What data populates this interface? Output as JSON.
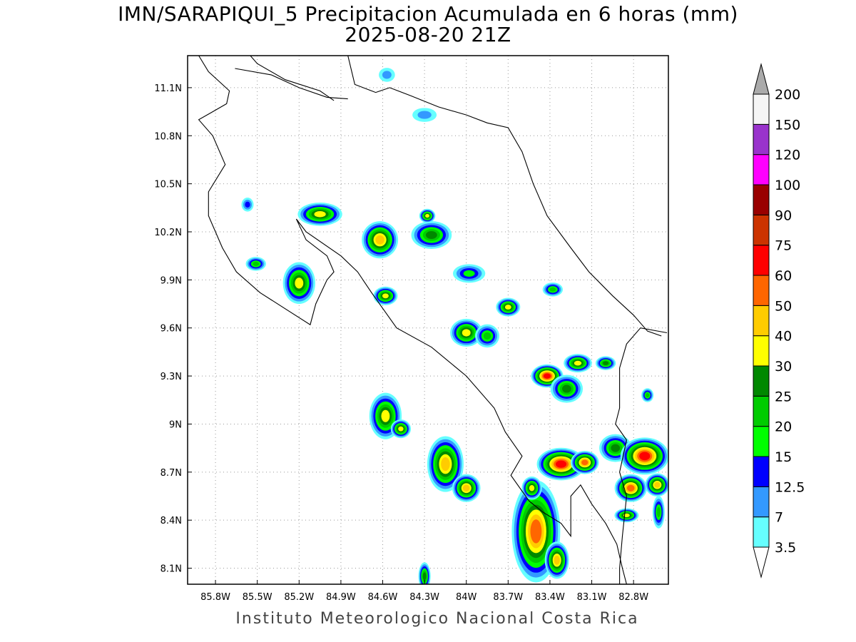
{
  "title": {
    "line1": "IMN/SARAPIQUI_5 Precipitacion Acumulada en 6 horas (mm)",
    "line2": "2025-08-20 21Z"
  },
  "footer": "Instituto Meteorologico Nacional Costa Rica",
  "map": {
    "lon_range": [
      -86.0,
      -82.55
    ],
    "lat_range": [
      8.0,
      11.3
    ],
    "x_ticks": [
      {
        "value": -85.8,
        "label": "85.8W"
      },
      {
        "value": -85.5,
        "label": "85.5W"
      },
      {
        "value": -85.2,
        "label": "85.2W"
      },
      {
        "value": -84.9,
        "label": "84.9W"
      },
      {
        "value": -84.6,
        "label": "84.6W"
      },
      {
        "value": -84.3,
        "label": "84.3W"
      },
      {
        "value": -84.0,
        "label": "84W"
      },
      {
        "value": -83.7,
        "label": "83.7W"
      },
      {
        "value": -83.4,
        "label": "83.4W"
      },
      {
        "value": -83.1,
        "label": "83.1W"
      },
      {
        "value": -82.8,
        "label": "82.8W"
      }
    ],
    "y_ticks": [
      {
        "value": 11.1,
        "label": "11.1N"
      },
      {
        "value": 10.8,
        "label": "10.8N"
      },
      {
        "value": 10.5,
        "label": "10.5N"
      },
      {
        "value": 10.2,
        "label": "10.2N"
      },
      {
        "value": 9.9,
        "label": "9.9N"
      },
      {
        "value": 9.6,
        "label": "9.6N"
      },
      {
        "value": 9.3,
        "label": "9.3N"
      },
      {
        "value": 9.0,
        "label": "9N"
      },
      {
        "value": 8.7,
        "label": "8.7N"
      },
      {
        "value": 8.4,
        "label": "8.4N"
      },
      {
        "value": 8.1,
        "label": "8.1N"
      }
    ],
    "grid": true,
    "coastlines": [
      [
        [
          -85.92,
          11.3
        ],
        [
          -85.85,
          11.2
        ],
        [
          -85.75,
          11.12
        ],
        [
          -85.7,
          11.08
        ],
        [
          -85.72,
          11.0
        ],
        [
          -85.82,
          10.95
        ],
        [
          -85.92,
          10.9
        ],
        [
          -85.82,
          10.8
        ],
        [
          -85.73,
          10.62
        ],
        [
          -85.85,
          10.45
        ],
        [
          -85.85,
          10.3
        ],
        [
          -85.75,
          10.1
        ],
        [
          -85.65,
          9.95
        ],
        [
          -85.48,
          9.82
        ],
        [
          -85.3,
          9.72
        ],
        [
          -85.12,
          9.62
        ],
        [
          -85.08,
          9.75
        ],
        [
          -85.0,
          9.9
        ],
        [
          -84.95,
          9.95
        ],
        [
          -85.0,
          10.05
        ],
        [
          -85.15,
          10.15
        ],
        [
          -85.22,
          10.28
        ],
        [
          -85.15,
          10.2
        ],
        [
          -84.9,
          10.05
        ],
        [
          -84.78,
          9.95
        ],
        [
          -84.68,
          9.82
        ],
        [
          -84.5,
          9.6
        ],
        [
          -84.25,
          9.48
        ],
        [
          -84.0,
          9.3
        ],
        [
          -83.8,
          9.1
        ],
        [
          -83.72,
          8.95
        ],
        [
          -83.6,
          8.8
        ],
        [
          -83.68,
          8.68
        ],
        [
          -83.55,
          8.52
        ],
        [
          -83.45,
          8.45
        ],
        [
          -83.32,
          8.38
        ],
        [
          -83.25,
          8.3
        ],
        [
          -83.25,
          8.55
        ],
        [
          -83.18,
          8.62
        ],
        [
          -83.1,
          8.5
        ],
        [
          -83.0,
          8.38
        ],
        [
          -82.92,
          8.25
        ],
        [
          -82.88,
          8.1
        ],
        [
          -82.85,
          8.0
        ]
      ],
      [
        [
          -84.85,
          11.3
        ],
        [
          -84.8,
          11.12
        ],
        [
          -84.65,
          11.07
        ],
        [
          -84.55,
          11.1
        ],
        [
          -84.4,
          11.05
        ],
        [
          -84.2,
          10.98
        ],
        [
          -84.0,
          10.93
        ],
        [
          -83.85,
          10.88
        ],
        [
          -83.7,
          10.85
        ],
        [
          -83.6,
          10.7
        ],
        [
          -83.52,
          10.5
        ],
        [
          -83.42,
          10.3
        ],
        [
          -83.25,
          10.1
        ],
        [
          -83.12,
          9.95
        ],
        [
          -82.95,
          9.8
        ],
        [
          -82.8,
          9.68
        ],
        [
          -82.7,
          9.58
        ],
        [
          -82.6,
          9.55
        ]
      ],
      [
        [
          -85.55,
          11.3
        ],
        [
          -85.5,
          11.25
        ],
        [
          -85.3,
          11.15
        ],
        [
          -85.05,
          11.08
        ],
        [
          -84.95,
          11.02
        ]
      ]
    ],
    "borders": [
      [
        [
          -85.66,
          11.22
        ],
        [
          -85.4,
          11.18
        ],
        [
          -85.2,
          11.1
        ],
        [
          -85.0,
          11.04
        ],
        [
          -84.85,
          11.03
        ]
      ],
      [
        [
          -82.56,
          9.57
        ],
        [
          -82.75,
          9.6
        ],
        [
          -82.85,
          9.5
        ],
        [
          -82.9,
          9.35
        ],
        [
          -82.9,
          9.1
        ],
        [
          -82.93,
          9.0
        ],
        [
          -82.85,
          8.9
        ],
        [
          -82.9,
          8.7
        ],
        [
          -82.85,
          8.55
        ],
        [
          -82.88,
          8.3
        ],
        [
          -82.9,
          8.1
        ],
        [
          -82.9,
          8.0
        ]
      ]
    ],
    "precip_blobs": [
      {
        "lon": -84.57,
        "lat": 11.18,
        "rx": 0.04,
        "ry": 0.03,
        "level": 7
      },
      {
        "lon": -84.3,
        "lat": 10.93,
        "rx": 0.06,
        "ry": 0.03,
        "level": 7
      },
      {
        "lon": -85.05,
        "lat": 10.31,
        "rx": 0.11,
        "ry": 0.05,
        "level": 30
      },
      {
        "lon": -84.62,
        "lat": 10.15,
        "rx": 0.09,
        "ry": 0.08,
        "level": 40
      },
      {
        "lon": -84.25,
        "lat": 10.18,
        "rx": 0.1,
        "ry": 0.06,
        "level": 25
      },
      {
        "lon": -84.28,
        "lat": 10.3,
        "rx": 0.04,
        "ry": 0.03,
        "level": 30
      },
      {
        "lon": -85.51,
        "lat": 10.0,
        "rx": 0.05,
        "ry": 0.03,
        "level": 20
      },
      {
        "lon": -85.57,
        "lat": 10.37,
        "rx": 0.03,
        "ry": 0.03,
        "level": 12.5
      },
      {
        "lon": -85.2,
        "lat": 9.88,
        "rx": 0.08,
        "ry": 0.09,
        "level": 30
      },
      {
        "lon": -84.58,
        "lat": 9.8,
        "rx": 0.06,
        "ry": 0.04,
        "level": 30
      },
      {
        "lon": -83.98,
        "lat": 9.94,
        "rx": 0.08,
        "ry": 0.04,
        "level": 15
      },
      {
        "lon": -84.0,
        "lat": 9.57,
        "rx": 0.08,
        "ry": 0.06,
        "level": 30
      },
      {
        "lon": -83.85,
        "lat": 9.55,
        "rx": 0.06,
        "ry": 0.05,
        "level": 20
      },
      {
        "lon": -83.7,
        "lat": 9.73,
        "rx": 0.06,
        "ry": 0.04,
        "level": 30
      },
      {
        "lon": -83.38,
        "lat": 9.84,
        "rx": 0.05,
        "ry": 0.03,
        "level": 20
      },
      {
        "lon": -84.58,
        "lat": 9.05,
        "rx": 0.08,
        "ry": 0.1,
        "level": 30
      },
      {
        "lon": -84.47,
        "lat": 8.97,
        "rx": 0.05,
        "ry": 0.04,
        "level": 30
      },
      {
        "lon": -84.15,
        "lat": 8.75,
        "rx": 0.09,
        "ry": 0.12,
        "level": 40
      },
      {
        "lon": -84.0,
        "lat": 8.6,
        "rx": 0.07,
        "ry": 0.06,
        "level": 40
      },
      {
        "lon": -83.5,
        "lat": 8.33,
        "rx": 0.12,
        "ry": 0.22,
        "level": 50
      },
      {
        "lon": -83.35,
        "lat": 8.15,
        "rx": 0.06,
        "ry": 0.08,
        "level": 40
      },
      {
        "lon": -83.42,
        "lat": 9.3,
        "rx": 0.08,
        "ry": 0.05,
        "level": 60
      },
      {
        "lon": -83.28,
        "lat": 9.22,
        "rx": 0.08,
        "ry": 0.06,
        "level": 25
      },
      {
        "lon": -83.2,
        "lat": 9.38,
        "rx": 0.07,
        "ry": 0.04,
        "level": 30
      },
      {
        "lon": -83.0,
        "lat": 9.38,
        "rx": 0.05,
        "ry": 0.03,
        "level": 25
      },
      {
        "lon": -83.32,
        "lat": 8.75,
        "rx": 0.12,
        "ry": 0.07,
        "level": 60
      },
      {
        "lon": -83.15,
        "lat": 8.76,
        "rx": 0.07,
        "ry": 0.05,
        "level": 50
      },
      {
        "lon": -82.93,
        "lat": 8.85,
        "rx": 0.08,
        "ry": 0.06,
        "level": 25
      },
      {
        "lon": -82.72,
        "lat": 8.8,
        "rx": 0.12,
        "ry": 0.08,
        "level": 60
      },
      {
        "lon": -82.82,
        "lat": 8.6,
        "rx": 0.08,
        "ry": 0.06,
        "level": 50
      },
      {
        "lon": -82.63,
        "lat": 8.62,
        "rx": 0.06,
        "ry": 0.05,
        "level": 40
      },
      {
        "lon": -83.53,
        "lat": 8.6,
        "rx": 0.05,
        "ry": 0.05,
        "level": 30
      },
      {
        "lon": -82.85,
        "lat": 8.43,
        "rx": 0.06,
        "ry": 0.03,
        "level": 30
      },
      {
        "lon": -82.62,
        "lat": 8.45,
        "rx": 0.03,
        "ry": 0.07,
        "level": 20
      },
      {
        "lon": -84.3,
        "lat": 8.05,
        "rx": 0.03,
        "ry": 0.06,
        "level": 25
      },
      {
        "lon": -82.7,
        "lat": 9.18,
        "rx": 0.03,
        "ry": 0.03,
        "level": 20
      }
    ]
  },
  "colorbar": {
    "colors": [
      "#66ffff",
      "#3399ff",
      "#0000ff",
      "#00ff00",
      "#00cc00",
      "#008800",
      "#ffff00",
      "#ffcc00",
      "#ff6600",
      "#ff0000",
      "#cc3300",
      "#990000",
      "#ff00ff",
      "#9933cc",
      "#f5f5f5"
    ],
    "upper_triangle_color": "#aaaaaa",
    "lower_triangle_color": "#ffffff",
    "labels": [
      "3.5",
      "7",
      "12.5",
      "15",
      "20",
      "25",
      "30",
      "40",
      "50",
      "60",
      "75",
      "90",
      "100",
      "120",
      "150",
      "200"
    ]
  }
}
